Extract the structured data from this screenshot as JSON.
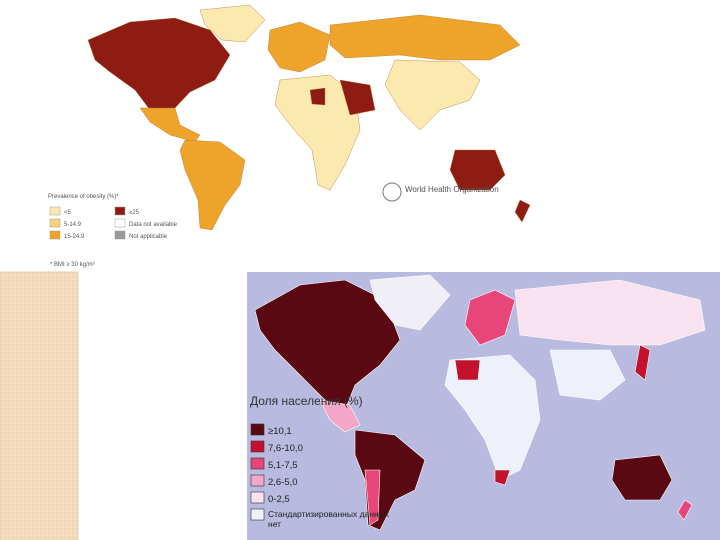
{
  "top_map": {
    "legend_title": "Prevalence of obesity (%)*",
    "legend": [
      {
        "label": "<5",
        "color": "#fbe9b0"
      },
      {
        "label": "≥25",
        "color": "#8e1c12"
      },
      {
        "label": "5-14.9",
        "color": "#f7d27a"
      },
      {
        "label": "Data not available",
        "color": "#ffffff"
      },
      {
        "label": "15-24.9",
        "color": "#eea42a"
      },
      {
        "label": "Not applicable",
        "color": "#9a9a9a"
      }
    ],
    "footnote": "* BMI ≥ 30 kg/m²",
    "org": "World Health Organization"
  },
  "bottom_map": {
    "legend_title": "Доля населения (%)",
    "legend": [
      {
        "label": "≥10,1",
        "color": "#5a0912"
      },
      {
        "label": "7,6-10,0",
        "color": "#c3122e"
      },
      {
        "label": "5,1-7,5",
        "color": "#e8457a"
      },
      {
        "label": "2,6-5,0",
        "color": "#f2a6c8"
      },
      {
        "label": "0-2,5",
        "color": "#f9e2ef"
      },
      {
        "label": "Стандартизированных данных нет",
        "color": "#eef0fa"
      }
    ]
  }
}
